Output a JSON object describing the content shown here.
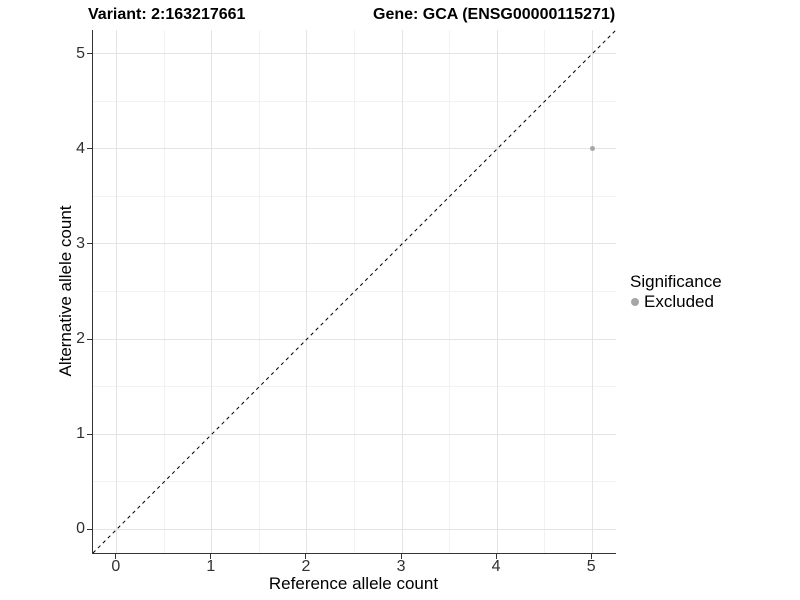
{
  "chart_data": {
    "type": "scatter",
    "title_left": "Variant: 2:163217661",
    "title_right": "Gene: GCA (ENSG00000115271)",
    "xlabel": "Reference allele count",
    "ylabel": "Alternative allele count",
    "xlim": [
      -0.25,
      5.25
    ],
    "ylim": [
      -0.25,
      5.25
    ],
    "x_ticks": [
      0,
      1,
      2,
      3,
      4,
      5
    ],
    "y_ticks": [
      0,
      1,
      2,
      3,
      4,
      5
    ],
    "x_minor_ticks": [
      0.5,
      1.5,
      2.5,
      3.5,
      4.5
    ],
    "y_minor_ticks": [
      0.5,
      1.5,
      2.5,
      3.5,
      4.5
    ],
    "grid": true,
    "series": [
      {
        "name": "Excluded",
        "color": "#a6a6a6",
        "points": [
          {
            "x": 5,
            "y": 4
          }
        ]
      }
    ],
    "reference_line": {
      "type": "identity",
      "style": "dashed",
      "color": "#000000",
      "dash": "3.5,3.5"
    },
    "legend": {
      "title": "Significance",
      "position": "right",
      "items": [
        {
          "label": "Excluded",
          "color": "#a6a6a6"
        }
      ]
    },
    "colors": {
      "grid_major": "#e4e4e4",
      "grid_minor": "#f2f2f2",
      "axis": "#333333",
      "tick_text": "#303030",
      "background": "#ffffff"
    }
  }
}
